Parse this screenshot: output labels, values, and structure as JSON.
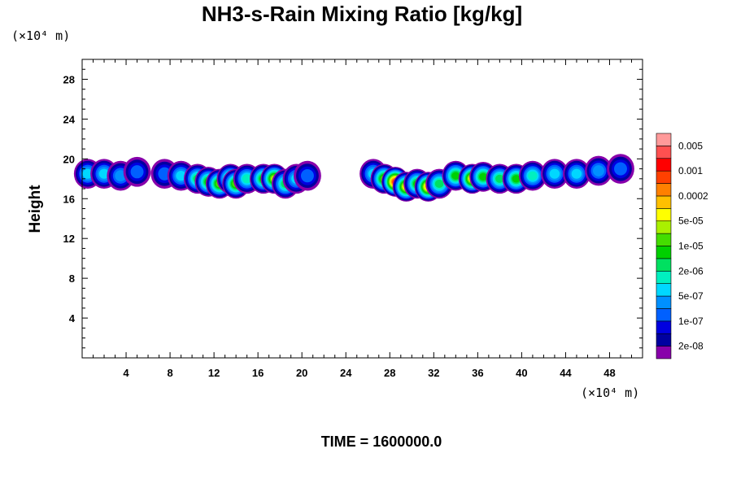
{
  "chart_data": {
    "type": "heatmap",
    "title": "NH3-s-Rain Mixing Ratio [kg/kg]",
    "xlabel": "",
    "ylabel": "Height",
    "x_unit": "(×10⁴ m)",
    "y_unit": "(×10⁴ m)",
    "footer": "TIME = 1600000.0",
    "xlim": [
      0,
      51
    ],
    "ylim": [
      0,
      30
    ],
    "x_ticks": [
      "4",
      "8",
      "12",
      "16",
      "20",
      "24",
      "28",
      "32",
      "36",
      "40",
      "44",
      "48"
    ],
    "x_tick_values": [
      4,
      8,
      12,
      16,
      20,
      24,
      28,
      32,
      36,
      40,
      44,
      48
    ],
    "y_ticks": [
      "4",
      "8",
      "12",
      "16",
      "20",
      "24",
      "28"
    ],
    "y_tick_values": [
      4,
      8,
      12,
      16,
      20,
      24,
      28
    ],
    "colorbar": {
      "colors": [
        "#8800aa",
        "#0000a0",
        "#0000e0",
        "#0060ff",
        "#0090ff",
        "#00d8ff",
        "#00f0c0",
        "#00e060",
        "#00d000",
        "#44dd00",
        "#aaf000",
        "#ffff00",
        "#ffc000",
        "#ff8000",
        "#ff4000",
        "#ff0000",
        "#ff5050",
        "#ff9a9a"
      ],
      "labels": [
        "2e-08",
        "1e-07",
        "5e-07",
        "2e-06",
        "1e-05",
        "5e-05",
        "0.0002",
        "0.001",
        "0.005"
      ]
    },
    "levels": [
      {
        "x": [
          0,
          50.5
        ],
        "y": [
          16.5,
          20
        ],
        "note_level": 0
      },
      {
        "x": [
          0,
          50.5
        ],
        "y": [
          17,
          19.5
        ],
        "note_level": 4
      }
    ],
    "cells": [
      [
        0.5,
        18.5,
        5
      ],
      [
        2,
        18.5,
        5
      ],
      [
        3.5,
        18.3,
        4
      ],
      [
        5,
        18.7,
        3
      ],
      [
        7.5,
        18.5,
        3
      ],
      [
        9,
        18.3,
        5
      ],
      [
        10.5,
        18,
        7
      ],
      [
        11.5,
        17.7,
        8
      ],
      [
        12.5,
        17.5,
        9
      ],
      [
        13.5,
        18,
        8
      ],
      [
        14,
        17.5,
        9
      ],
      [
        15,
        18,
        6
      ],
      [
        16.5,
        18,
        8
      ],
      [
        17.5,
        18,
        10
      ],
      [
        18.5,
        17.5,
        7
      ],
      [
        19.5,
        18,
        5
      ],
      [
        20.5,
        18.3,
        3
      ],
      [
        26.5,
        18.5,
        5
      ],
      [
        27.5,
        18,
        9
      ],
      [
        28.5,
        17.7,
        14
      ],
      [
        29.5,
        17.2,
        11
      ],
      [
        30.5,
        17.5,
        8
      ],
      [
        31.5,
        17.2,
        12
      ],
      [
        32.5,
        17.5,
        7
      ],
      [
        34,
        18.3,
        8
      ],
      [
        35.5,
        18,
        11
      ],
      [
        36.5,
        18.2,
        8
      ],
      [
        38,
        18,
        7
      ],
      [
        39.5,
        18,
        8
      ],
      [
        41,
        18.3,
        6
      ],
      [
        43,
        18.5,
        5
      ],
      [
        45,
        18.5,
        5
      ],
      [
        47,
        18.8,
        4
      ],
      [
        49,
        19,
        3
      ]
    ]
  }
}
